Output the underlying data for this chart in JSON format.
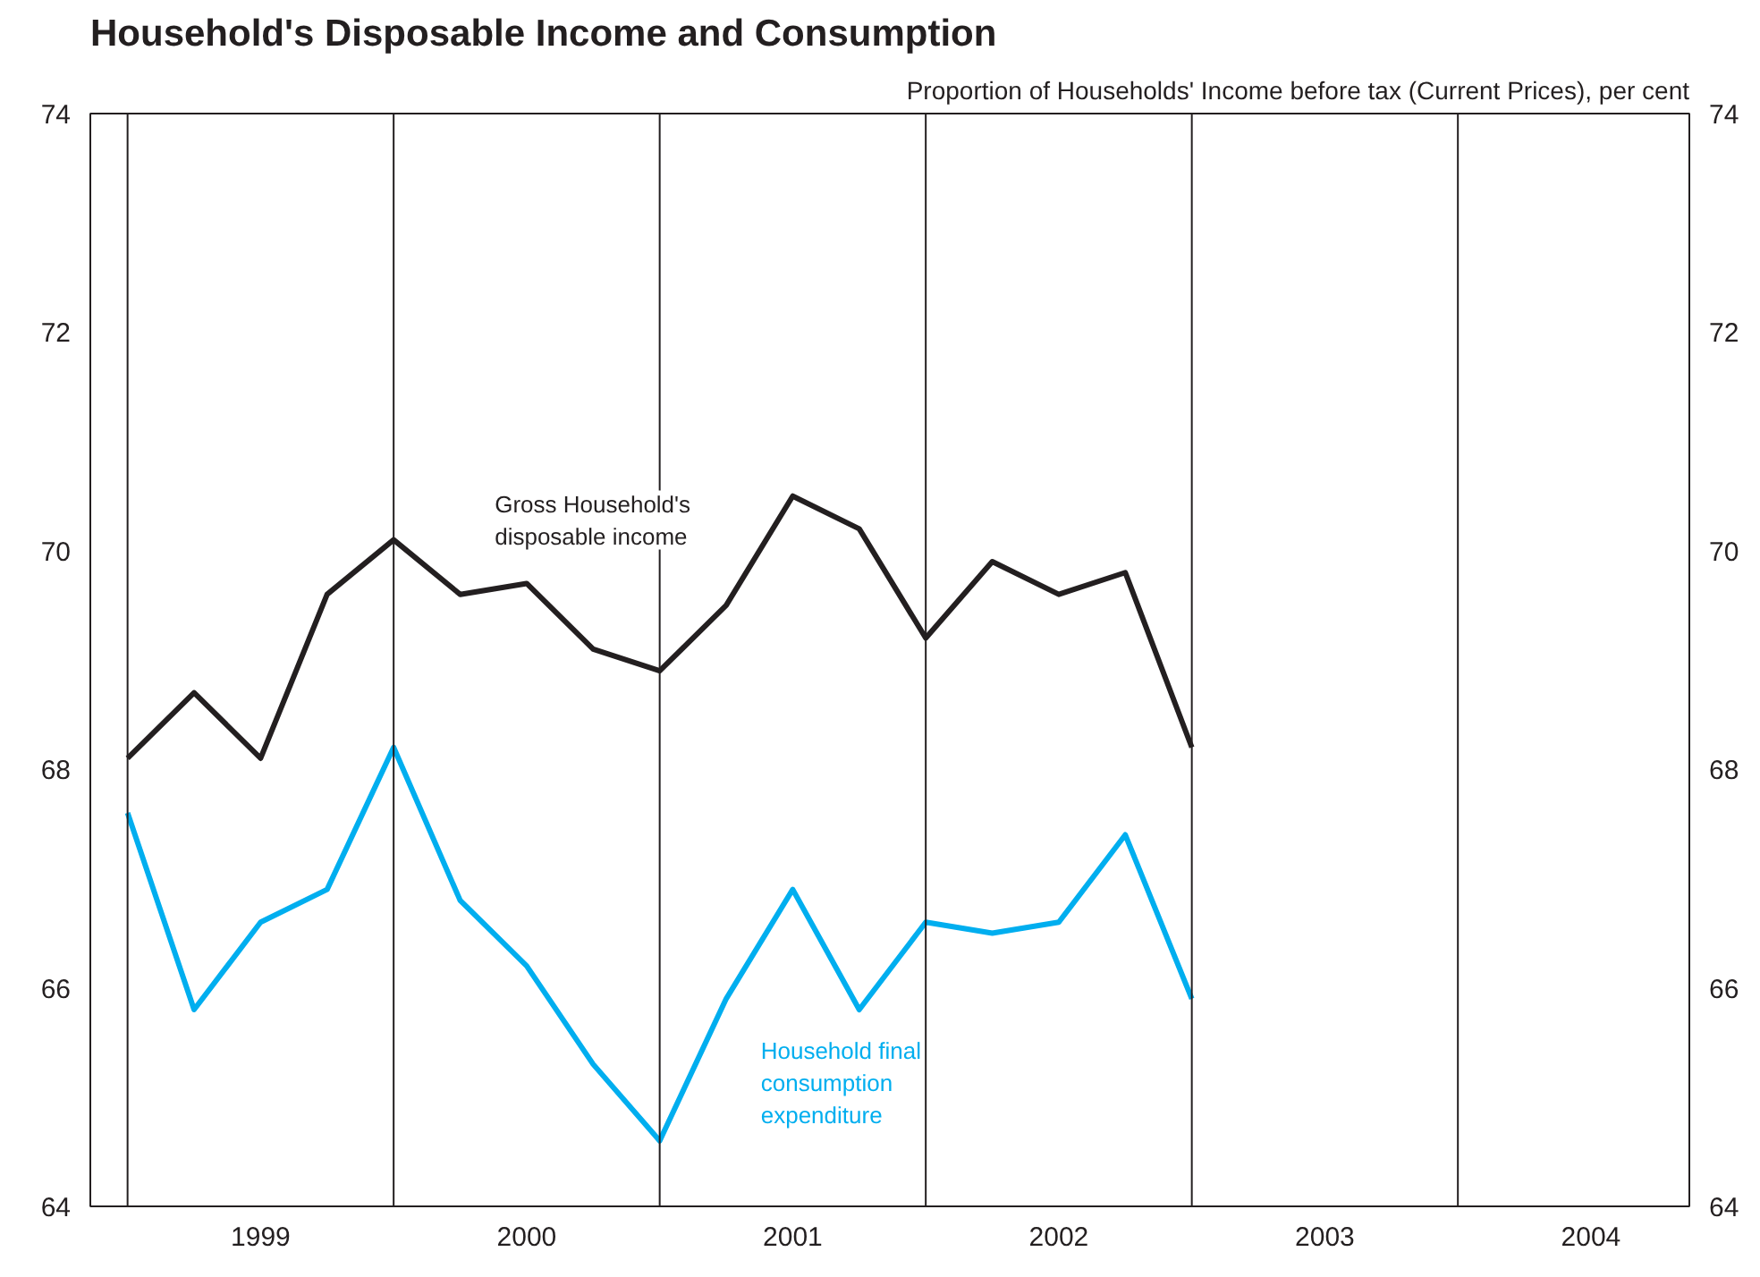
{
  "chart_data": {
    "type": "line",
    "title": "Household's Disposable Income and Consumption",
    "subtitle": "Proportion of Households' Income before tax (Current Prices), per cent",
    "x": [
      1998.5,
      1998.75,
      1999,
      1999.25,
      1999.5,
      1999.75,
      2000,
      2000.25,
      2000.5,
      2000.75,
      2001,
      2001.25,
      2001.5,
      2001.75,
      2002,
      2002.25,
      2002.5
    ],
    "series": [
      {
        "name": "Gross Household's disposable income",
        "color": "#231f20",
        "values": [
          68.1,
          68.7,
          68.1,
          69.6,
          70.1,
          69.6,
          69.7,
          69.1,
          68.9,
          69.5,
          70.5,
          70.2,
          69.2,
          69.9,
          69.6,
          69.8,
          68.2
        ]
      },
      {
        "name": "Household final consumption expenditure",
        "color": "#00aeef",
        "values": [
          67.6,
          65.8,
          66.6,
          66.9,
          68.2,
          66.8,
          66.2,
          65.3,
          64.6,
          65.9,
          66.9,
          65.8,
          66.6,
          66.5,
          66.6,
          67.4,
          65.9
        ]
      }
    ],
    "xlim": [
      1998.36,
      2004.37
    ],
    "xticks": [
      1999,
      2000,
      2001,
      2002,
      2003,
      2004
    ],
    "ylim": [
      64,
      74
    ],
    "yticks": [
      64,
      66,
      68,
      70,
      72,
      74
    ],
    "y2lim": [
      64,
      74
    ],
    "y2ticks": [
      64,
      66,
      68,
      70,
      72,
      74
    ],
    "ref_lines": [
      {
        "axis": "x",
        "value": 1998.5,
        "label": null,
        "color": "#231f20"
      },
      {
        "axis": "x",
        "value": 1999.5,
        "label": null,
        "color": "#231f20"
      },
      {
        "axis": "x",
        "value": 2000.5,
        "label": null,
        "color": "#231f20"
      },
      {
        "axis": "x",
        "value": 2001.5,
        "label": null,
        "color": "#231f20"
      },
      {
        "axis": "x",
        "value": 2002.5,
        "label": null,
        "color": "#231f20"
      },
      {
        "axis": "x",
        "value": 2003.5,
        "label": null,
        "color": "#231f20"
      }
    ],
    "grid": false,
    "marker": "none",
    "line_style": "solid"
  }
}
